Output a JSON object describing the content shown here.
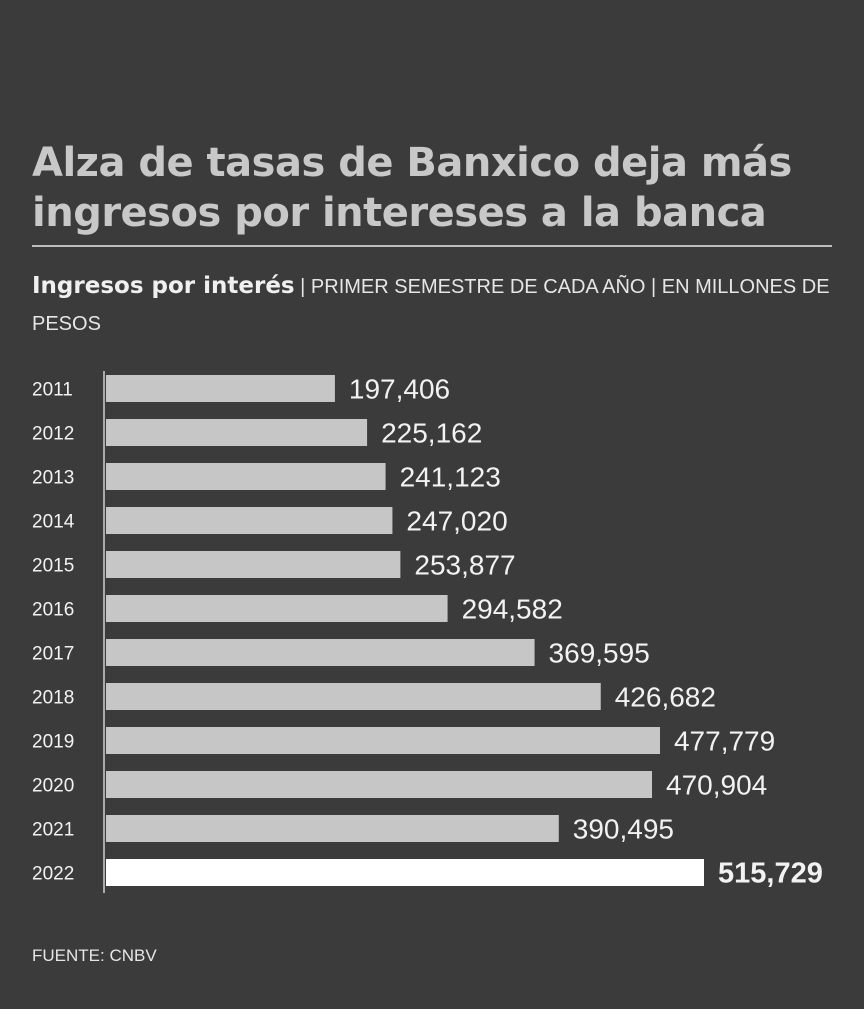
{
  "header": {
    "title": "Alza de tasas de Banxico deja más ingresos por intereses a la banca",
    "subtitle_strong": "Ingresos por interés",
    "subtitle_rest": " | PRIMER SEMESTRE DE CADA AÑO | EN MILLONES DE PESOS"
  },
  "footer": {
    "source": "FUENTE: CNBV"
  },
  "colors": {
    "background": "#3b3b3b",
    "bar": "#c6c6c6",
    "highlight_bar": "#ffffff",
    "text": "#f2f2f2"
  },
  "chart_data": {
    "type": "bar",
    "orientation": "horizontal",
    "categories": [
      "2011",
      "2012",
      "2013",
      "2014",
      "2015",
      "2016",
      "2017",
      "2018",
      "2019",
      "2020",
      "2021",
      "2022"
    ],
    "values": [
      197406,
      225162,
      241123,
      247020,
      253877,
      294582,
      369595,
      426682,
      477779,
      470904,
      390495,
      515729
    ],
    "value_labels": [
      "197,406",
      "225,162",
      "241,123",
      "247,020",
      "253,877",
      "294,582",
      "369,595",
      "426,682",
      "477,779",
      "470,904",
      "390,495",
      "515,729"
    ],
    "highlight": "2022",
    "xlim": [
      0,
      515729
    ],
    "grid": false,
    "legend": "none"
  }
}
